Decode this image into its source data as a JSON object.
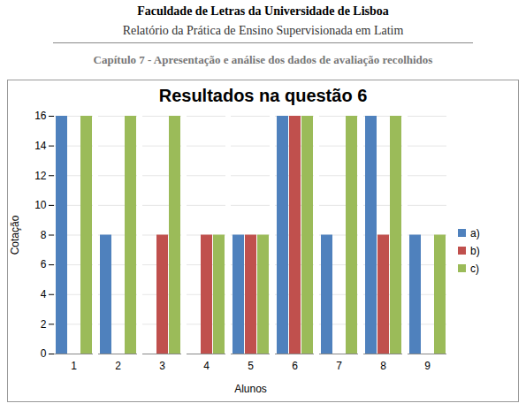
{
  "header": {
    "institution": "Faculdade de Letras da Universidade de Lisboa",
    "report": "Relatório da Prática de Ensino Supervisionada em Latim",
    "chapter": "Capítulo 7 - Apresentação e análise dos dados de avaliação recolhidos"
  },
  "chart_data": {
    "type": "bar",
    "title": "Resultados na questão 6",
    "x_label": "Alunos",
    "y_label": "Cotação",
    "categories": [
      "1",
      "2",
      "3",
      "4",
      "5",
      "6",
      "7",
      "8",
      "9"
    ],
    "series": [
      {
        "name": "a)",
        "color": "#4f81bd",
        "values": [
          16,
          8,
          0,
          0,
          8,
          16,
          8,
          16,
          8
        ]
      },
      {
        "name": "b)",
        "color": "#c0504d",
        "values": [
          0,
          0,
          8,
          8,
          8,
          16,
          0,
          8,
          0
        ]
      },
      {
        "name": "c)",
        "color": "#9bbb59",
        "values": [
          16,
          16,
          16,
          8,
          8,
          16,
          16,
          16,
          8
        ]
      }
    ],
    "ylim": [
      0,
      16
    ],
    "yticks": [
      0,
      2,
      4,
      6,
      8,
      10,
      12,
      14,
      16
    ],
    "grid": true,
    "legend": "right"
  }
}
